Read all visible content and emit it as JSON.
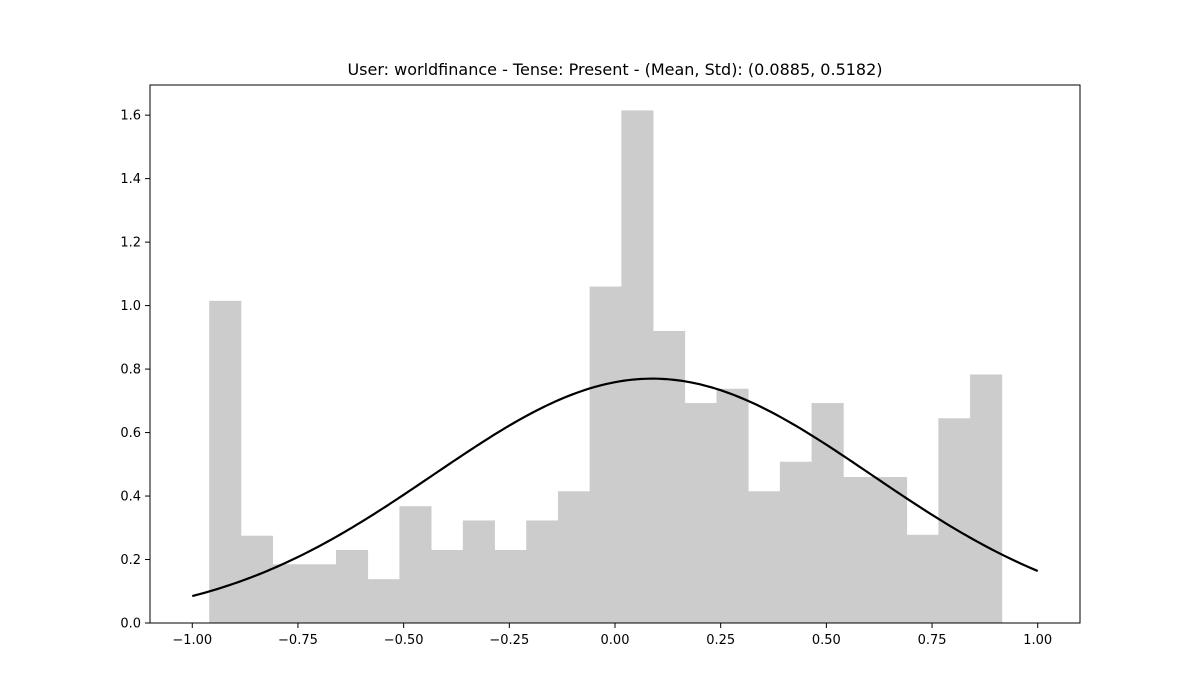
{
  "chart_data": {
    "type": "bar",
    "title": "User: worldfinance - Tense: Present - (Mean, Std): (0.0885, 0.5182)",
    "xlabel": "",
    "ylabel": "",
    "xlim": [
      -1.1,
      1.1
    ],
    "ylim": [
      0,
      1.695
    ],
    "x_ticks": [
      -1.0,
      -0.75,
      -0.5,
      -0.25,
      0.0,
      0.25,
      0.5,
      0.75,
      1.0
    ],
    "x_tick_labels": [
      "−1.00",
      "−0.75",
      "−0.50",
      "−0.25",
      "0.00",
      "0.25",
      "0.50",
      "0.75",
      "1.00"
    ],
    "y_ticks": [
      0.0,
      0.2,
      0.4,
      0.6,
      0.8,
      1.0,
      1.2,
      1.4,
      1.6
    ],
    "y_tick_labels": [
      "0.0",
      "0.2",
      "0.4",
      "0.6",
      "0.8",
      "1.0",
      "1.2",
      "1.4",
      "1.6"
    ],
    "grid": false,
    "histogram": {
      "bin_edges": [
        -0.96,
        -0.885,
        -0.81,
        -0.735,
        -0.66,
        -0.585,
        -0.51,
        -0.435,
        -0.36,
        -0.285,
        -0.21,
        -0.135,
        -0.06,
        0.015,
        0.09,
        0.165,
        0.24,
        0.315,
        0.39,
        0.465,
        0.54,
        0.615,
        0.69,
        0.765,
        0.84,
        0.915
      ],
      "values": [
        1.015,
        0.275,
        0.185,
        0.185,
        0.23,
        0.138,
        0.368,
        0.23,
        0.323,
        0.23,
        0.323,
        0.415,
        1.06,
        1.615,
        0.92,
        0.693,
        0.738,
        0.415,
        0.508,
        0.693,
        0.46,
        0.46,
        0.278,
        0.645,
        0.783
      ],
      "color": "#cccccc"
    },
    "fit_curve": {
      "mean": 0.0885,
      "std": 0.5182,
      "x_range": [
        -1.0,
        1.0
      ],
      "color": "#000000"
    }
  }
}
